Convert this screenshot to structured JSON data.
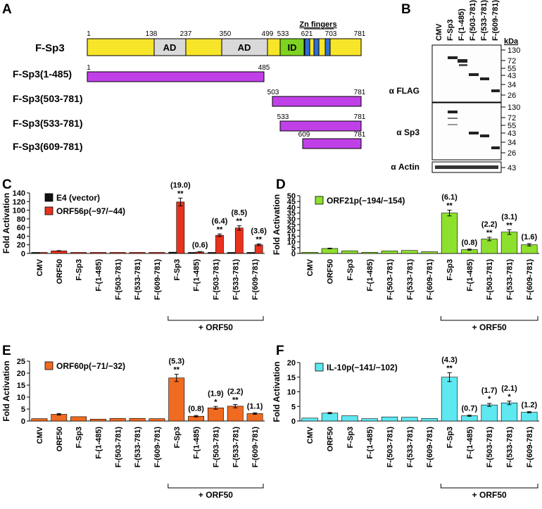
{
  "panel_labels": {
    "A": "A",
    "B": "B",
    "C": "C",
    "D": "D",
    "E": "E",
    "F": "F"
  },
  "panel_a": {
    "construct_name": "F-Sp3",
    "domain_labels": {
      "ad1": "AD",
      "ad2": "AD",
      "id": "ID",
      "zn": "Zn fingers"
    },
    "positions": [
      "1",
      "138",
      "237",
      "350",
      "499",
      "533",
      "621",
      "703",
      "781"
    ],
    "fragments": [
      {
        "name": "F-Sp3(1-485)",
        "start": "1",
        "end": "485"
      },
      {
        "name": "F-Sp3(503-781)",
        "start": "503",
        "end": "781"
      },
      {
        "name": "F-Sp3(533-781)",
        "start": "533",
        "end": "781"
      },
      {
        "name": "F-Sp3(609-781)",
        "start": "609",
        "end": "781"
      }
    ],
    "colors": {
      "backbone": "#f7e52a",
      "ad": "#d9d9d9",
      "id": "#7ed321",
      "zn": "#2f6fd6",
      "fragment": "#c040e8"
    }
  },
  "panel_b": {
    "lanes": [
      "CMV",
      "F-Sp3",
      "F-(1-485)",
      "F-(503-781)",
      "F-(533-781)",
      "F-(609-781)"
    ],
    "kda_label": "kDa",
    "blots": [
      {
        "label": "α FLAG",
        "markers": [
          "130",
          "72",
          "55",
          "43",
          "34",
          "26"
        ]
      },
      {
        "label": "α Sp3",
        "markers": [
          "130",
          "72",
          "55",
          "43",
          "34",
          "26"
        ]
      },
      {
        "label": "α Actin",
        "markers": [
          "43"
        ]
      }
    ]
  },
  "chart_data": [
    {
      "panel": "C",
      "type": "bar",
      "ylabel": "Fold Activation",
      "ylim": [
        0,
        140
      ],
      "yticks": [
        0,
        20,
        40,
        60,
        80,
        100,
        120,
        140
      ],
      "categories": [
        "CMV",
        "ORF50",
        "F-Sp3",
        "F-(1-485)",
        "F-(503-781)",
        "F-(533-781)",
        "F-(609-781)",
        "F-Sp3",
        "F-(1-485)",
        "F-(503-781)",
        "F-(533-781)",
        "F-(609-781)"
      ],
      "bracket_label": "+ ORF50",
      "series": [
        {
          "name": "E4 (vector)",
          "color": "#111111",
          "values": [
            1,
            null,
            null,
            null,
            null,
            null,
            null,
            null,
            null,
            null,
            null,
            null
          ]
        },
        {
          "name": "ORF56p(−97/−44)",
          "color": "#e8321e",
          "values": [
            1,
            6,
            1,
            0.5,
            1,
            1,
            1,
            119,
            3.5,
            42,
            59,
            20
          ],
          "errors": [
            0,
            0.5,
            0,
            0,
            0,
            0,
            0,
            9,
            0.5,
            3,
            5,
            2
          ],
          "fold": [
            "",
            "",
            "",
            "",
            "",
            "",
            "",
            "(19.0)",
            "(0.6)",
            "(6.4)",
            "(8.5)",
            "(3.6)"
          ],
          "sig": [
            "",
            "",
            "",
            "",
            "",
            "",
            "",
            "**",
            "",
            "**",
            "**",
            "**"
          ]
        }
      ],
      "extra_black": [
        null,
        null,
        null,
        null,
        null,
        null,
        null,
        3,
        1,
        2,
        2,
        1
      ]
    },
    {
      "panel": "D",
      "type": "bar",
      "ylabel": "Fold Activation",
      "ylim": [
        0,
        50
      ],
      "yticks": [
        0,
        5,
        10,
        15,
        20,
        25,
        30,
        35,
        40,
        45,
        50
      ],
      "categories": [
        "CMV",
        "ORF50",
        "F-Sp3",
        "F-(1-485)",
        "F-(503-781)",
        "F-(533-781)",
        "F-(609-781)",
        "F-Sp3",
        "F-(1-485)",
        "F-(503-781)",
        "F-(533-781)",
        "F-(609-781)"
      ],
      "bracket_label": "+ ORF50",
      "series": [
        {
          "name": "ORF21p(−194/−154)",
          "color": "#8ee02e",
          "values": [
            1,
            4.3,
            2.3,
            1,
            2.2,
            2.6,
            1.5,
            35,
            3.3,
            12.5,
            18.5,
            7.5
          ],
          "errors": [
            0,
            0.3,
            0,
            0,
            0,
            0,
            0,
            2.5,
            0.5,
            1.5,
            2,
            1
          ],
          "fold": [
            "",
            "",
            "",
            "",
            "",
            "",
            "",
            "(6.1)",
            "(0.8)",
            "(2.2)",
            "(3.1)",
            "(1.6)"
          ],
          "sig": [
            "",
            "",
            "",
            "",
            "",
            "",
            "",
            "**",
            "",
            "**",
            "**",
            ""
          ]
        }
      ]
    },
    {
      "panel": "E",
      "type": "bar",
      "ylabel": "Fold Activation",
      "ylim": [
        0,
        25
      ],
      "yticks": [
        0,
        5,
        10,
        15,
        20,
        25
      ],
      "categories": [
        "CMV",
        "ORF50",
        "F-Sp3",
        "F-(1-485)",
        "F-(503-781)",
        "F-(533-781)",
        "F-(609-781)",
        "F-Sp3",
        "F-(1-485)",
        "F-(503-781)",
        "F-(533-781)",
        "F-(609-781)"
      ],
      "bracket_label": "+ ORF50",
      "series": [
        {
          "name": "ORF60p(−71/−32)",
          "color": "#f06a20",
          "values": [
            1,
            2.8,
            1.8,
            0.8,
            1.1,
            1.1,
            1,
            18,
            2,
            5.5,
            6.2,
            3.1
          ],
          "errors": [
            0,
            0.3,
            0,
            0,
            0,
            0,
            0,
            1.5,
            0.3,
            0.6,
            0.7,
            0.3
          ],
          "fold": [
            "",
            "",
            "",
            "",
            "",
            "",
            "",
            "(5.3)",
            "(0.8)",
            "(1.9)",
            "(2.2)",
            "(1.1)"
          ],
          "sig": [
            "",
            "",
            "",
            "",
            "",
            "",
            "",
            "**",
            "",
            "*",
            "**",
            ""
          ]
        }
      ]
    },
    {
      "panel": "F",
      "type": "bar",
      "ylabel": "Fold Activation",
      "ylim": [
        0,
        20
      ],
      "yticks": [
        0,
        5,
        10,
        15,
        20
      ],
      "categories": [
        "CMV",
        "ORF50",
        "F-Sp3",
        "F-(1-485)",
        "F-(503-781)",
        "F-(533-781)",
        "F-(609-781)",
        "F-Sp3",
        "F-(1-485)",
        "F-(503-781)",
        "F-(533-781)",
        "F-(609-781)"
      ],
      "bracket_label": "+ ORF50",
      "series": [
        {
          "name": "IL-10p(−141/−102)",
          "color": "#5ee8f0",
          "values": [
            1,
            2.7,
            1.8,
            0.8,
            1.4,
            1.3,
            0.9,
            15,
            1.8,
            5.5,
            6.2,
            3
          ],
          "errors": [
            0,
            0.2,
            0,
            0,
            0,
            0,
            0,
            1.5,
            0.2,
            0.5,
            0.6,
            0.2
          ],
          "fold": [
            "",
            "",
            "",
            "",
            "",
            "",
            "",
            "(4.3)",
            "(0.7)",
            "(1.7)",
            "(2.1)",
            "(1.2)"
          ],
          "sig": [
            "",
            "",
            "",
            "",
            "",
            "",
            "",
            "**",
            "",
            "*",
            "*",
            ""
          ]
        }
      ]
    }
  ]
}
